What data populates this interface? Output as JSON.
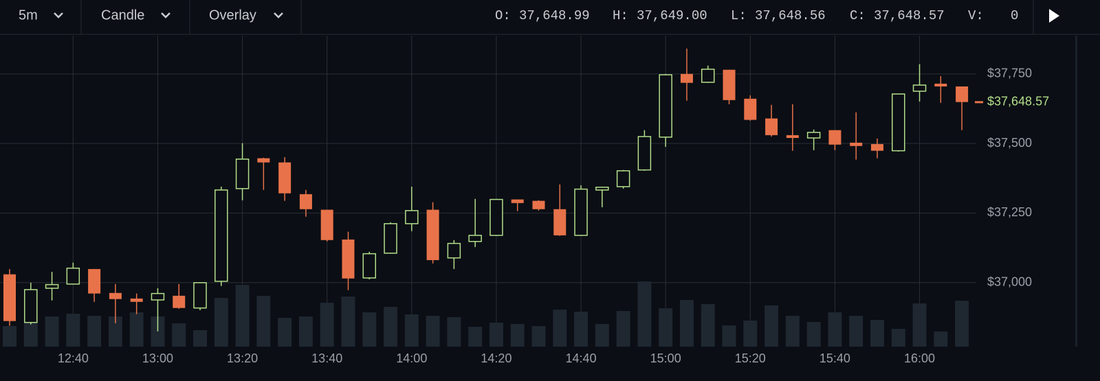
{
  "toolbar": {
    "interval": "5m",
    "chart_style": "Candle",
    "overlay": "Overlay",
    "ohlcv": [
      {
        "label": "O:",
        "value": "37,648.99"
      },
      {
        "label": "H:",
        "value": "37,649.00"
      },
      {
        "label": "L:",
        "value": "37,648.56"
      },
      {
        "label": "C:",
        "value": "37,648.57"
      },
      {
        "label": "V:",
        "value": "0"
      }
    ]
  },
  "chart_data": {
    "type": "candlestick",
    "categories": [
      null,
      null,
      null,
      "12:40",
      null,
      null,
      null,
      "13:00",
      null,
      null,
      null,
      "13:20",
      null,
      null,
      null,
      "13:40",
      null,
      null,
      null,
      "14:00",
      null,
      null,
      null,
      "14:20",
      null,
      null,
      null,
      "14:40",
      null,
      null,
      null,
      "15:00",
      null,
      null,
      null,
      "15:20",
      null,
      null,
      null,
      "15:40",
      null,
      null,
      null,
      "16:00",
      null,
      null
    ],
    "open": [
      37030,
      36857,
      36980,
      36995,
      37049,
      36963,
      36943,
      36938,
      36953,
      36909,
      37005,
      37338,
      37447,
      37432,
      37318,
      37262,
      37155,
      37017,
      37106,
      37212,
      37262,
      37089,
      37148,
      37170,
      37299,
      37294,
      37264,
      37170,
      37333,
      37345,
      37405,
      37523,
      37750,
      37720,
      37765,
      37661,
      37590,
      37530,
      37520,
      37548,
      37503,
      37498,
      37474,
      37688,
      37715,
      37705
    ],
    "high": [
      37049,
      37000,
      37039,
      37072,
      37049,
      36995,
      36961,
      36980,
      36995,
      37000,
      37345,
      37501,
      37449,
      37451,
      37333,
      37262,
      37183,
      37111,
      37217,
      37345,
      37289,
      37153,
      37301,
      37301,
      37299,
      37296,
      37353,
      37350,
      37345,
      37405,
      37548,
      37750,
      37841,
      37780,
      37765,
      37673,
      37639,
      37641,
      37550,
      37548,
      37612,
      37518,
      37678,
      37785,
      37742,
      37705
    ],
    "low": [
      36845,
      36850,
      36936,
      36993,
      36931,
      36854,
      36887,
      36825,
      36906,
      36901,
      36988,
      37296,
      37333,
      37294,
      37237,
      37148,
      36973,
      37012,
      37104,
      37185,
      37069,
      37049,
      37128,
      37168,
      37257,
      37259,
      37168,
      37168,
      37271,
      37338,
      37402,
      37488,
      37654,
      37718,
      37641,
      37582,
      37525,
      37474,
      37476,
      37476,
      37442,
      37447,
      37471,
      37651,
      37646,
      37548
    ],
    "close": [
      36862,
      36975,
      36993,
      37052,
      36961,
      36941,
      36931,
      36961,
      36909,
      37000,
      37333,
      37444,
      37432,
      37321,
      37264,
      37153,
      37015,
      37104,
      37212,
      37259,
      37081,
      37141,
      37170,
      37299,
      37286,
      37264,
      37170,
      37336,
      37343,
      37402,
      37525,
      37747,
      37718,
      37767,
      37656,
      37585,
      37530,
      37520,
      37540,
      37496,
      37491,
      37474,
      37678,
      37710,
      37705,
      37649
    ],
    "volume": [
      30,
      42,
      44,
      48,
      45,
      44,
      50,
      44,
      34,
      24,
      71,
      90,
      74,
      42,
      44,
      64,
      73,
      50,
      58,
      47,
      45,
      43,
      29,
      35,
      33,
      30,
      54,
      51,
      33,
      52,
      95,
      56,
      68,
      62,
      31,
      38,
      60,
      45,
      36,
      50,
      45,
      39,
      26,
      63,
      22,
      67
    ],
    "up_color": "#b3df8c",
    "down_color": "#e8734a",
    "volume_color": "#1f2731",
    "ylim": [
      36770,
      37880
    ],
    "yticks": [
      {
        "value": 37000,
        "label": "$37,000"
      },
      {
        "value": 37250,
        "label": "$37,250"
      },
      {
        "value": 37500,
        "label": "$37,500"
      },
      {
        "value": 37750,
        "label": "$37,750"
      }
    ],
    "grid": true,
    "last_price": {
      "value": 37648.57,
      "label": "$37,648.57"
    }
  }
}
